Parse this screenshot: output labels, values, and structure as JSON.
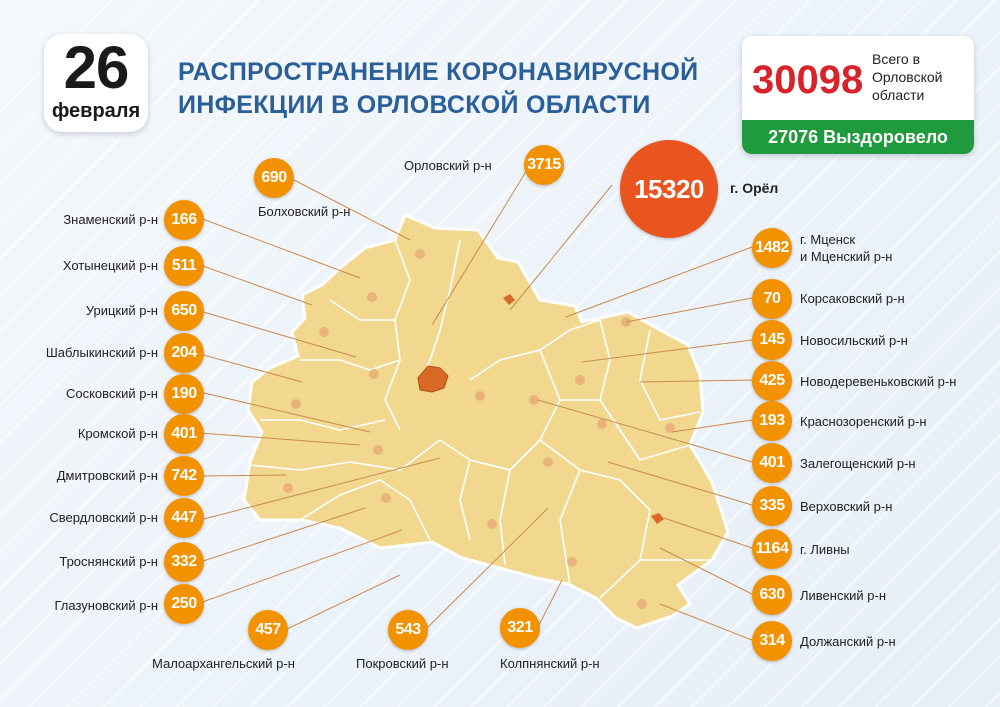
{
  "date": {
    "day": "26",
    "month": "февраля"
  },
  "title_line1": "РАСПРОСТРАНЕНИЕ КОРОНАВИРУСНОЙ",
  "title_line2": "ИНФЕКЦИИ В ОРЛОВСКОЙ ОБЛАСТИ",
  "total": {
    "value": "30098",
    "label": "Всего в Орловской области",
    "recovered_value": "27076",
    "recovered_label": "Выздоровело"
  },
  "colors": {
    "badge": "#f39200",
    "city_badge": "#e9541f",
    "map_fill": "#f1d88e",
    "title": "#2a5f9a",
    "total": "#d8232a",
    "recovered": "#1f9a3c"
  },
  "districts": [
    {
      "id": "bolkhovsky",
      "name": "Болховский р-н",
      "count": "690"
    },
    {
      "id": "orlovsky",
      "name": "Орловский р-н",
      "count": "3715"
    },
    {
      "id": "oryol",
      "name": "г. Орёл",
      "count": "15320"
    },
    {
      "id": "znamensky",
      "name": "Знаменский р-н",
      "count": "166"
    },
    {
      "id": "khotynetsky",
      "name": "Хотынецкий р-н",
      "count": "511"
    },
    {
      "id": "uritsky",
      "name": "Урицкий р-н",
      "count": "650"
    },
    {
      "id": "shablykinsky",
      "name": "Шаблыкинский р-н",
      "count": "204"
    },
    {
      "id": "soskovsky",
      "name": "Сосковский р-н",
      "count": "190"
    },
    {
      "id": "kromskoy",
      "name": "Кромской р-н",
      "count": "401"
    },
    {
      "id": "dmitrovsky",
      "name": "Дмитровский р-н",
      "count": "742"
    },
    {
      "id": "sverdlovsky",
      "name": "Свердловский р-н",
      "count": "447"
    },
    {
      "id": "trosnyansky",
      "name": "Троснянский р-н",
      "count": "332"
    },
    {
      "id": "glazunovsky",
      "name": "Глазуновский р-н",
      "count": "250"
    },
    {
      "id": "maloarkhangelsky",
      "name": "Малоархангельский р-н",
      "count": "457"
    },
    {
      "id": "pokrovsky",
      "name": "Покровский р-н",
      "count": "543"
    },
    {
      "id": "kolpnyansky",
      "name": "Колпнянский р-н",
      "count": "321"
    },
    {
      "id": "mtsensk",
      "name": "г. Мценск и Мценский р-н",
      "name_line1": "г. Мценск",
      "name_line2": "и Мценский р-н",
      "count": "1482"
    },
    {
      "id": "korsakovsky",
      "name": "Корсаковский р-н",
      "count": "70"
    },
    {
      "id": "novosilsky",
      "name": "Новосильский р-н",
      "count": "145"
    },
    {
      "id": "novoderevenkovsky",
      "name": "Новодеревеньковский р-н",
      "count": "425"
    },
    {
      "id": "krasnozorensky",
      "name": "Краснозоренский р-н",
      "count": "193"
    },
    {
      "id": "zalegoshchensky",
      "name": "Залегощенский р-н",
      "count": "401"
    },
    {
      "id": "verkhovsky",
      "name": "Верховский р-н",
      "count": "335"
    },
    {
      "id": "livny",
      "name": "г. Ливны",
      "count": "1164"
    },
    {
      "id": "livensky",
      "name": "Ливенский р-н",
      "count": "630"
    },
    {
      "id": "dolzhansky",
      "name": "Должанский р-н",
      "count": "314"
    }
  ]
}
